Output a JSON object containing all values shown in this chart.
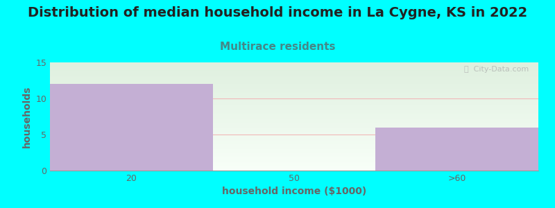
{
  "title": "Distribution of median household income in La Cygne, KS in 2022",
  "subtitle": "Multirace residents",
  "categories": [
    "20",
    "50",
    ">60"
  ],
  "values": [
    12,
    0,
    6
  ],
  "bar_color": "#c4afd4",
  "xlabel": "household income ($1000)",
  "ylabel": "households",
  "ylim": [
    0,
    15
  ],
  "yticks": [
    0,
    5,
    10,
    15
  ],
  "background_color": "#00ffff",
  "gradient_top": "#dff0df",
  "gradient_bottom": "#f8fff8",
  "title_fontsize": 14,
  "subtitle_fontsize": 11,
  "subtitle_color": "#448888",
  "axis_label_fontsize": 10,
  "tick_fontsize": 9,
  "tick_color": "#666666",
  "grid_color": "#f0b8b8",
  "watermark_text": "ⓘ  City-Data.com"
}
